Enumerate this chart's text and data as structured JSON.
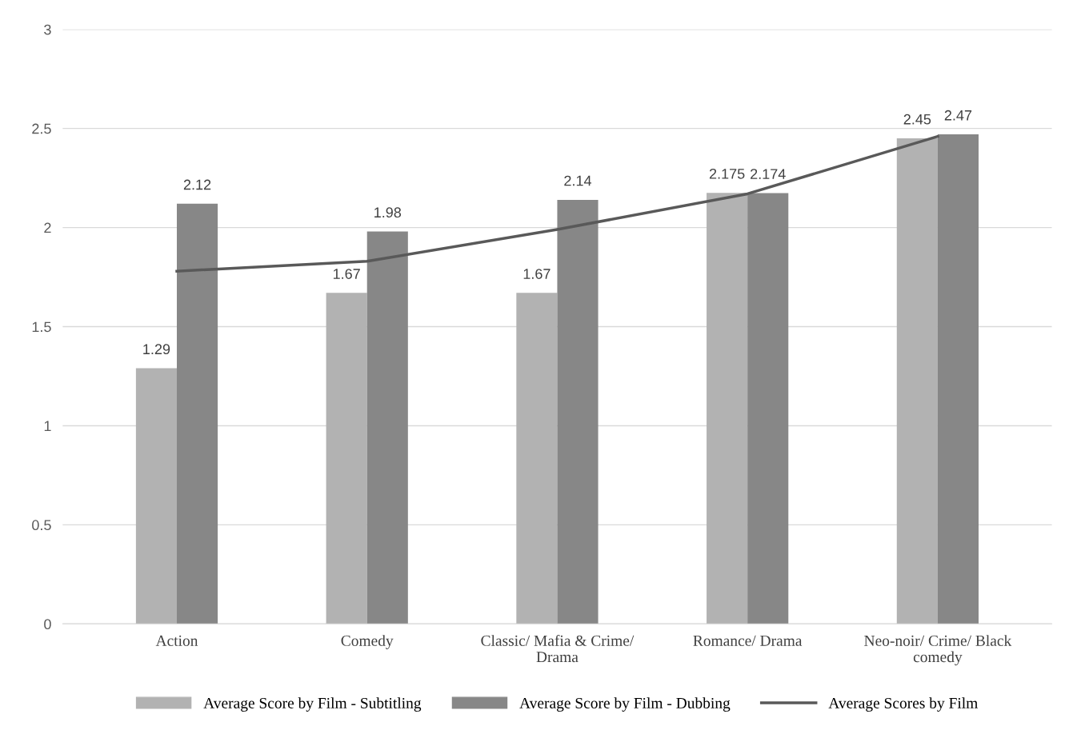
{
  "chart_data": {
    "type": "bar",
    "categories": [
      "Action",
      "Comedy",
      "Classic/ Mafia & Crime/\nDrama",
      "Romance/ Drama",
      "Neo-noir/ Crime/ Black\ncomedy"
    ],
    "series": [
      {
        "name": "Average Score by Film - Subtitling",
        "color": "#b2b2b2",
        "values": [
          1.29,
          1.67,
          1.67,
          2.175,
          2.45
        ],
        "value_labels": [
          "1.29",
          "1.67",
          "1.67",
          "2.175",
          "2.45"
        ]
      },
      {
        "name": "Average Score by Film - Dubbing",
        "color": "#878787",
        "values": [
          2.12,
          1.98,
          2.14,
          2.174,
          2.47
        ],
        "value_labels": [
          "2.12",
          "1.98",
          "2.14",
          "2.174",
          "2.47"
        ]
      },
      {
        "name": "Average Scores by Film",
        "type": "line",
        "color": "#595959",
        "values": [
          1.78,
          1.83,
          1.99,
          2.17,
          2.46
        ]
      }
    ],
    "ylim": [
      0,
      3
    ],
    "yticks": [
      0,
      0.5,
      1,
      1.5,
      2,
      2.5,
      3
    ],
    "grid": "y",
    "legend": "bottom",
    "marker": "none",
    "line_style": "solid"
  }
}
